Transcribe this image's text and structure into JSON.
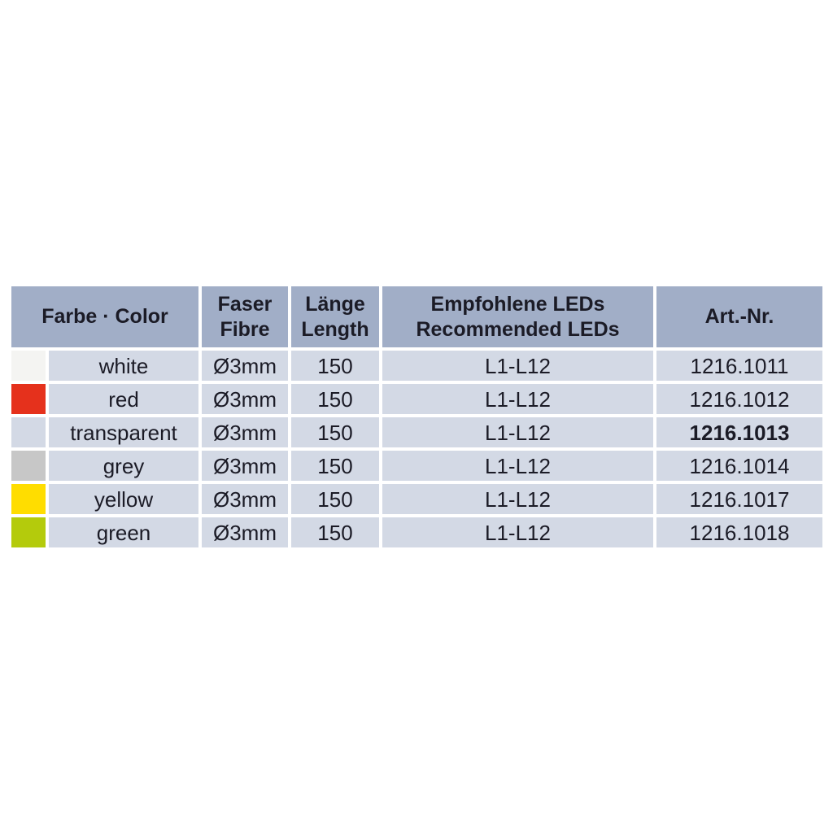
{
  "table": {
    "colors": {
      "header_bg": "#a1aec7",
      "row_bg": "#d3d9e5",
      "text": "#1b1b26",
      "gap": "#ffffff"
    },
    "header": {
      "farbe_color": "Farbe · Color",
      "fibre_line1": "Faser",
      "fibre_line2": "Fibre",
      "length_line1": "Länge",
      "length_line2": "Length",
      "leds_line1": "Empfohlene LEDs",
      "leds_line2": "Recommended LEDs",
      "art_nr": "Art.-Nr."
    },
    "rows": [
      {
        "color_name": "white",
        "swatch_color": "#f4f4f2",
        "fibre": "Ø3mm",
        "length": "150",
        "leds": "L1-L12",
        "art_nr": "1216.1011",
        "art_nr_bold": false
      },
      {
        "color_name": "red",
        "swatch_color": "#e5311c",
        "fibre": "Ø3mm",
        "length": "150",
        "leds": "L1-L12",
        "art_nr": "1216.1012",
        "art_nr_bold": false
      },
      {
        "color_name": "transparent",
        "swatch_color": "#d3d9e5",
        "fibre": "Ø3mm",
        "length": "150",
        "leds": "L1-L12",
        "art_nr": "1216.1013",
        "art_nr_bold": true
      },
      {
        "color_name": "grey",
        "swatch_color": "#c7c7c7",
        "fibre": "Ø3mm",
        "length": "150",
        "leds": "L1-L12",
        "art_nr": "1216.1014",
        "art_nr_bold": false
      },
      {
        "color_name": "yellow",
        "swatch_color": "#ffdd00",
        "fibre": "Ø3mm",
        "length": "150",
        "leds": "L1-L12",
        "art_nr": "1216.1017",
        "art_nr_bold": false
      },
      {
        "color_name": "green",
        "swatch_color": "#b4cb0c",
        "fibre": "Ø3mm",
        "length": "150",
        "leds": "L1-L12",
        "art_nr": "1216.1018",
        "art_nr_bold": false
      }
    ]
  }
}
